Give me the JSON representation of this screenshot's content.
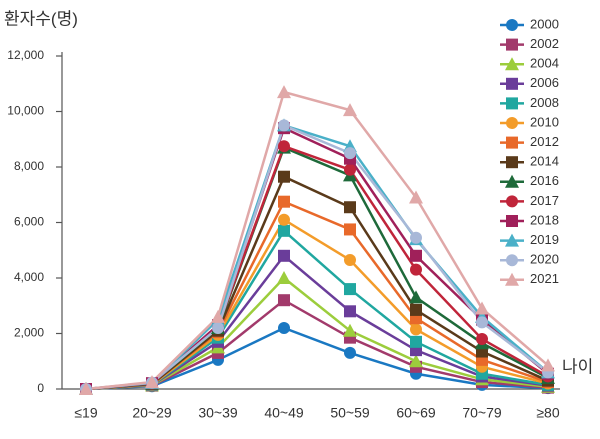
{
  "chart_data": {
    "type": "line",
    "y_label": "환자수(명)",
    "x_label": "나이",
    "categories": [
      "≤19",
      "20~29",
      "30~39",
      "40~49",
      "50~59",
      "60~69",
      "70~79",
      "≥80"
    ],
    "ylim": [
      0,
      12000
    ],
    "yticks": [
      0,
      {
        "value": 2000,
        "label": "2,000"
      },
      {
        "value": 4000,
        "label": "4,000"
      },
      {
        "value": 6000,
        "label": "6,000"
      },
      {
        "value": 8000,
        "label": "8,000"
      },
      {
        "value": 10000,
        "label": "10,000"
      },
      {
        "value": 12000,
        "label": "12,000"
      }
    ],
    "grid": false,
    "series": [
      {
        "name": "2000",
        "color": "#1a78c2",
        "marker": "circle",
        "values": [
          0,
          100,
          1050,
          2200,
          1300,
          550,
          150,
          30
        ]
      },
      {
        "name": "2002",
        "color": "#a23a6b",
        "marker": "square",
        "values": [
          0,
          120,
          1300,
          3200,
          1850,
          800,
          250,
          50
        ]
      },
      {
        "name": "2004",
        "color": "#9ccd3c",
        "marker": "triangle",
        "values": [
          0,
          130,
          1500,
          4000,
          2100,
          1000,
          350,
          80
        ]
      },
      {
        "name": "2006",
        "color": "#6a3d9a",
        "marker": "square",
        "values": [
          0,
          140,
          1700,
          4800,
          2800,
          1400,
          450,
          120
        ]
      },
      {
        "name": "2008",
        "color": "#20a7a0",
        "marker": "square",
        "values": [
          0,
          150,
          1850,
          5700,
          3600,
          1700,
          550,
          150
        ]
      },
      {
        "name": "2010",
        "color": "#f39c2a",
        "marker": "circle",
        "values": [
          0,
          160,
          1950,
          6100,
          4650,
          2150,
          800,
          200
        ]
      },
      {
        "name": "2012",
        "color": "#e8692a",
        "marker": "square",
        "values": [
          0,
          170,
          2050,
          6750,
          5750,
          2550,
          1050,
          250
        ]
      },
      {
        "name": "2014",
        "color": "#5a3a1a",
        "marker": "square",
        "values": [
          0,
          180,
          2100,
          7650,
          6550,
          2850,
          1350,
          300
        ]
      },
      {
        "name": "2016",
        "color": "#1e6a3a",
        "marker": "triangle",
        "values": [
          0,
          190,
          2200,
          8700,
          7700,
          3300,
          1650,
          400
        ]
      },
      {
        "name": "2017",
        "color": "#c0253a",
        "marker": "circle",
        "values": [
          0,
          200,
          2250,
          8750,
          7900,
          4300,
          1800,
          450
        ]
      },
      {
        "name": "2018",
        "color": "#a0205a",
        "marker": "square",
        "values": [
          0,
          210,
          2300,
          9400,
          8300,
          4800,
          2500,
          550
        ]
      },
      {
        "name": "2019",
        "color": "#4ab0c8",
        "marker": "triangle",
        "values": [
          0,
          220,
          2500,
          9500,
          8750,
          5400,
          2600,
          600
        ]
      },
      {
        "name": "2020",
        "color": "#a8b8d8",
        "marker": "circle",
        "values": [
          0,
          230,
          2200,
          9500,
          8500,
          5450,
          2400,
          600
        ]
      },
      {
        "name": "2021",
        "color": "#e0a8a8",
        "marker": "triangle",
        "values": [
          0,
          250,
          2600,
          10700,
          10050,
          6900,
          2900,
          850
        ]
      }
    ]
  }
}
